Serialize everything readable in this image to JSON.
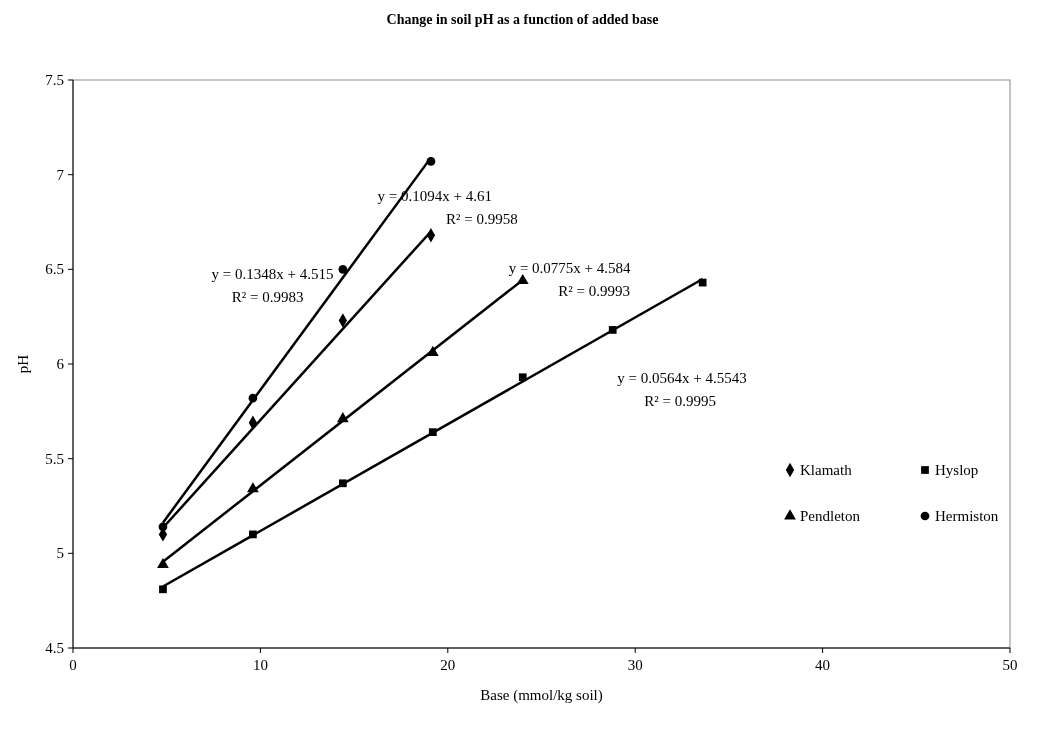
{
  "chart_data": {
    "type": "scatter",
    "title": "Change in soil pH as a function of added base",
    "xlabel": "Base (mmol/kg soil)",
    "ylabel": "pH",
    "xlim": [
      0,
      50
    ],
    "xticks": [
      0,
      10,
      20,
      30,
      40,
      50
    ],
    "ylim": [
      4.5,
      7.5
    ],
    "yticks": [
      4.5,
      5,
      5.5,
      6,
      6.5,
      7,
      7.5
    ],
    "grid": false,
    "legend": "right",
    "series": [
      {
        "name": "Klamath",
        "color": "#000000",
        "marker": "diamond",
        "x": [
          4.8,
          9.6,
          14.4,
          19.1
        ],
        "values": [
          5.1,
          5.69,
          6.23,
          6.68
        ]
      },
      {
        "name": "Hyslop",
        "color": "#000000",
        "marker": "square",
        "x": [
          4.8,
          9.6,
          14.4,
          19.2,
          24,
          28.8,
          33.6
        ],
        "values": [
          4.81,
          5.1,
          5.37,
          5.64,
          5.93,
          6.18,
          6.43
        ]
      },
      {
        "name": "Pendleton",
        "color": "#000000",
        "marker": "triangle",
        "x": [
          4.8,
          9.6,
          14.4,
          19.2,
          24
        ],
        "values": [
          4.94,
          5.34,
          5.71,
          6.06,
          6.44
        ]
      },
      {
        "name": "Hermiston",
        "color": "#000000",
        "marker": "circle",
        "x": [
          4.8,
          9.6,
          14.4,
          19.1
        ],
        "values": [
          5.14,
          5.82,
          6.5,
          7.07
        ]
      },
      {
        "type": "line",
        "color": "#000000",
        "x": [
          4.8,
          19.1
        ],
        "values": [
          5.135,
          6.7
        ]
      },
      {
        "type": "line",
        "color": "#000000",
        "x": [
          4.8,
          33.6
        ],
        "values": [
          4.825,
          6.449
        ]
      },
      {
        "type": "line",
        "color": "#000000",
        "x": [
          4.8,
          24
        ],
        "values": [
          4.956,
          6.444
        ]
      },
      {
        "type": "line",
        "color": "#000000",
        "x": [
          4.8,
          19.1
        ],
        "values": [
          5.162,
          7.09
        ]
      }
    ],
    "annotations": [
      "y = 0.1348x + 4.515",
      "R² = 0.9983",
      "y = 0.1094x + 4.61",
      "R² = 0.9958",
      "y = 0.0775x + 4.584",
      "R² = 0.9993",
      "y = 0.0564x + 4.5543",
      "R² = 0.9995"
    ]
  }
}
